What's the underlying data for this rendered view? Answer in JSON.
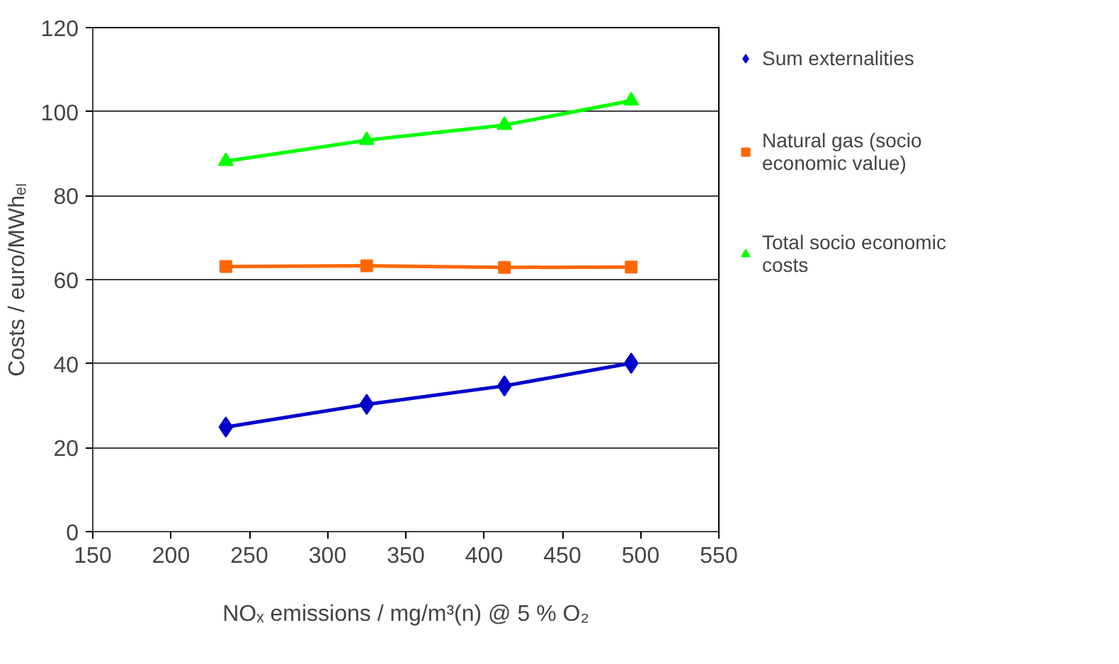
{
  "chart_data": {
    "type": "line",
    "xlabel": "NOₓ emissions / mg/m³(n) @ 5 % O₂",
    "ylabel": "Costs / euro/MWhₑₗ",
    "x": [
      235,
      325,
      413,
      494
    ],
    "series": [
      {
        "name": "Sum externalities",
        "color": "#0000cc",
        "marker": "diamond",
        "values": [
          24.9,
          30.3,
          34.7,
          40.1
        ]
      },
      {
        "name": "Natural gas (socio economic value)",
        "color": "#ff6600",
        "marker": "square",
        "values": [
          63.1,
          63.3,
          62.9,
          63.0
        ]
      },
      {
        "name": "Total socio economic costs",
        "color": "#00ff00",
        "marker": "triangle",
        "values": [
          88.2,
          93.2,
          96.8,
          102.6
        ]
      }
    ],
    "xlim": [
      150,
      550
    ],
    "xticks": [
      150,
      200,
      250,
      300,
      350,
      400,
      450,
      500,
      550
    ],
    "ylim": [
      0,
      120
    ],
    "yticks": [
      0,
      20,
      40,
      60,
      80,
      100,
      120
    ],
    "grid": "y",
    "legend": "right",
    "line_style": "solid"
  }
}
